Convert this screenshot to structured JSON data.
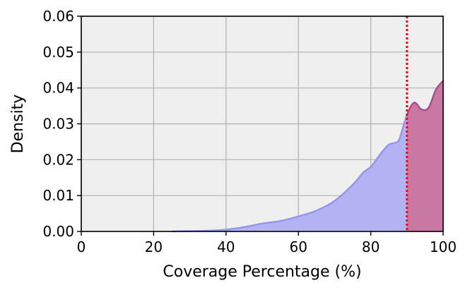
{
  "chart_data": {
    "type": "area",
    "title": "",
    "xlabel": "Coverage Percentage (%)",
    "ylabel": "Density",
    "xlim": [
      0,
      100
    ],
    "ylim": [
      0,
      0.06
    ],
    "xticks": [
      0,
      20,
      40,
      60,
      80,
      100
    ],
    "xtick_labels": [
      "0",
      "20",
      "40",
      "60",
      "80",
      "100"
    ],
    "yticks": [
      0,
      0.01,
      0.02,
      0.03,
      0.04,
      0.05,
      0.06
    ],
    "ytick_labels": [
      "0.00",
      "0.01",
      "0.02",
      "0.03",
      "0.04",
      "0.05",
      "0.06"
    ],
    "grid": true,
    "threshold_line": {
      "x": 90,
      "style": "dotted",
      "color": "#ff0000"
    },
    "colors": {
      "plot_background": "#efefef",
      "grid": "#b0b0b0",
      "density_fill": "#b3b3f3",
      "density_line": "#9595ee",
      "highlight_fill": "#c878a2",
      "highlight_line": "#a8508a"
    },
    "x": [
      25,
      30,
      35,
      40,
      45,
      50,
      55,
      60,
      65,
      70,
      75,
      78,
      80,
      83,
      85,
      87,
      88,
      90,
      92,
      94,
      96,
      98,
      100
    ],
    "y": [
      0.0,
      0.0001,
      0.0002,
      0.0005,
      0.0012,
      0.0022,
      0.0029,
      0.0042,
      0.0058,
      0.0085,
      0.013,
      0.0165,
      0.018,
      0.022,
      0.0242,
      0.0248,
      0.026,
      0.0325,
      0.0359,
      0.034,
      0.0345,
      0.0395,
      0.042
    ]
  }
}
